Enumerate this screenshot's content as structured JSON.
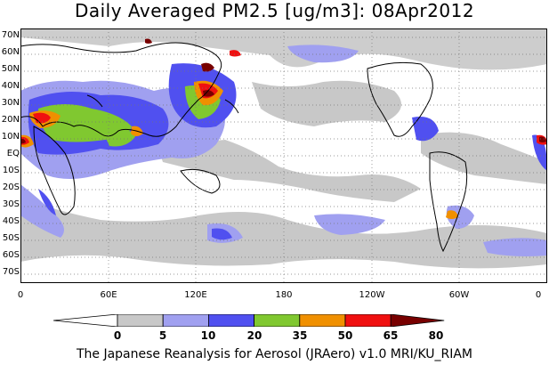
{
  "title": "Daily Averaged PM2.5 [ug/m3]: 08Apr2012",
  "footer": "The Japanese Reanalysis for Aerosol (JRAero) v1.0 MRI/KU_RIAM",
  "lat_labels": [
    "70N",
    "60N",
    "50N",
    "40N",
    "30N",
    "20N",
    "10N",
    "EQ",
    "10S",
    "20S",
    "30S",
    "40S",
    "50S",
    "60S",
    "70S"
  ],
  "lon_labels": [
    "0",
    "60E",
    "120E",
    "180",
    "120W",
    "60W",
    "0"
  ],
  "colorbar": {
    "ticks": [
      "0",
      "5",
      "10",
      "20",
      "35",
      "50",
      "65",
      "80"
    ],
    "colors": [
      "#ffffff",
      "#c8c8c8",
      "#a0a0f0",
      "#5050f0",
      "#80c830",
      "#f09000",
      "#f01010",
      "#780000"
    ]
  }
}
